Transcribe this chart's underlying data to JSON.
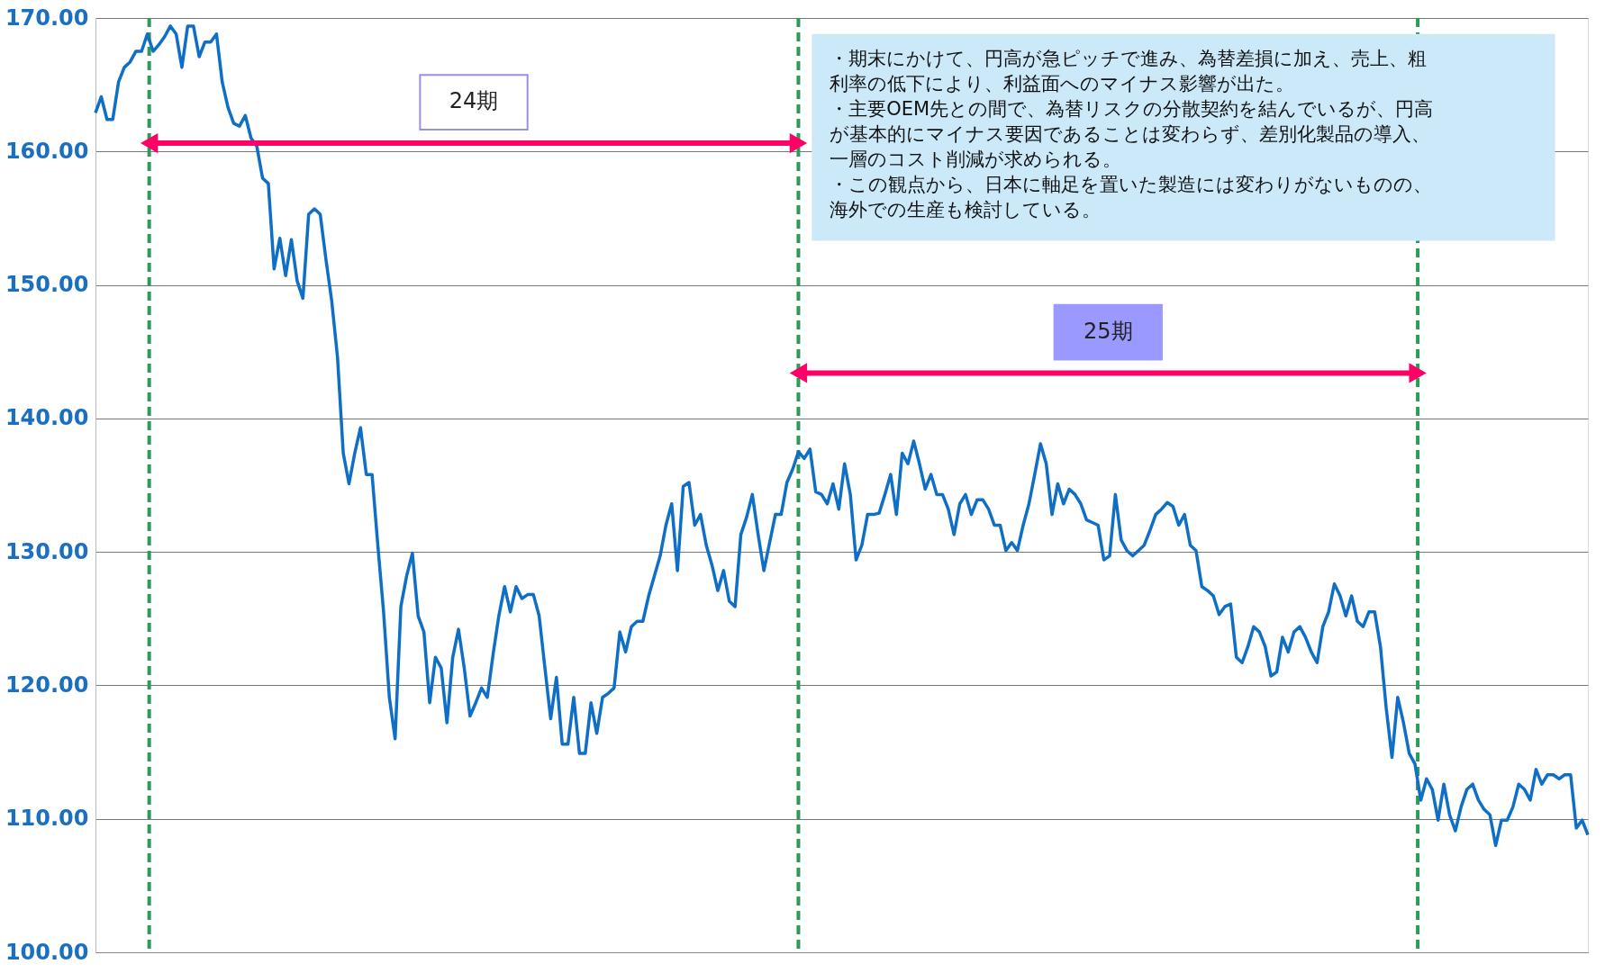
{
  "chart_data": {
    "type": "line",
    "categories": [
      null,
      null,
      null,
      null,
      null,
      null,
      null,
      null,
      null,
      null,
      null,
      null,
      null,
      null,
      null,
      null,
      null,
      null,
      null,
      null,
      null,
      null,
      null,
      null,
      null,
      null,
      null,
      null,
      null,
      null,
      null,
      null,
      null,
      null,
      null,
      null,
      null,
      null,
      null,
      null,
      null,
      null,
      null,
      null,
      null,
      null,
      null,
      null,
      null,
      null,
      null,
      null,
      null,
      null,
      null,
      null,
      null,
      null,
      null,
      null,
      null,
      null,
      null,
      null,
      null,
      null,
      null,
      null,
      null,
      null,
      null,
      null,
      null,
      null,
      null,
      null,
      null,
      null,
      null,
      null,
      null,
      null,
      null,
      null,
      null,
      null,
      null,
      null,
      null,
      null,
      null,
      null,
      null,
      null,
      null,
      null,
      null,
      null,
      null,
      null,
      null,
      null,
      null,
      null,
      null,
      null,
      null,
      null,
      null,
      null,
      null,
      null,
      null,
      null,
      null,
      null,
      null,
      null,
      null,
      null,
      null,
      null,
      null,
      null,
      null,
      null,
      null,
      null,
      null,
      null,
      null,
      null,
      null,
      null,
      null,
      null,
      null,
      null,
      null,
      null,
      null,
      null,
      null,
      null,
      null,
      null,
      null,
      null,
      null,
      null,
      null,
      null,
      null,
      null,
      null,
      null,
      null,
      null,
      null,
      null,
      null,
      null,
      null,
      null,
      null,
      null,
      null,
      null,
      null,
      null,
      null,
      null,
      null,
      null,
      null,
      null,
      null,
      null,
      null,
      null,
      null,
      null,
      null,
      null,
      null,
      null,
      null,
      null,
      null,
      null,
      null,
      null,
      null,
      null,
      null,
      null,
      null,
      null,
      null,
      null,
      null,
      null,
      null,
      null,
      null,
      null,
      null,
      null,
      null,
      null,
      null,
      null,
      null,
      null,
      null,
      null,
      null,
      null,
      null,
      null,
      null,
      null,
      null,
      null,
      null,
      null,
      null,
      null,
      null,
      null,
      null,
      null,
      null,
      null,
      null,
      null,
      null,
      null,
      null,
      null,
      null,
      null,
      null,
      null,
      null,
      null,
      null,
      null,
      null,
      null,
      null,
      null,
      null,
      null,
      null,
      null,
      null,
      null,
      null,
      null
    ],
    "series": [
      {
        "color": "#0f6fc6",
        "values": [
          162.9,
          164.1,
          162.4,
          162.4,
          165.2,
          166.3,
          166.7,
          167.5,
          167.5,
          168.8,
          167.5,
          168.0,
          168.6,
          169.4,
          168.8,
          166.3,
          169.4,
          169.4,
          167.1,
          168.2,
          168.2,
          168.8,
          165.2,
          163.3,
          162.1,
          161.9,
          162.7,
          161.0,
          160.4,
          158.0,
          157.6,
          151.2,
          153.5,
          150.7,
          153.4,
          150.3,
          149.0,
          155.3,
          155.7,
          155.3,
          151.9,
          148.8,
          144.6,
          137.4,
          135.1,
          137.4,
          139.3,
          135.8,
          135.8,
          130.5,
          125.5,
          119.1,
          116.0,
          125.9,
          128.2,
          129.9,
          125.2,
          124.0,
          118.7,
          122.1,
          121.3,
          117.2,
          122.1,
          124.2,
          121.3,
          117.7,
          118.7,
          119.8,
          119.1,
          122.3,
          125.2,
          127.4,
          125.5,
          127.4,
          126.5,
          126.8,
          126.8,
          125.2,
          121.3,
          117.5,
          120.6,
          115.6,
          115.6,
          119.1,
          114.9,
          114.9,
          118.7,
          116.4,
          119.1,
          119.4,
          119.8,
          124.0,
          122.5,
          124.4,
          124.8,
          124.8,
          126.7,
          128.2,
          129.7,
          132.0,
          133.6,
          128.6,
          134.9,
          135.2,
          132.0,
          132.8,
          130.5,
          129.0,
          127.1,
          128.6,
          126.3,
          125.9,
          131.3,
          132.6,
          134.3,
          131.3,
          128.6,
          130.7,
          132.8,
          132.8,
          135.2,
          136.2,
          137.5,
          137.0,
          137.7,
          134.5,
          134.3,
          133.6,
          135.1,
          133.2,
          136.6,
          134.3,
          129.4,
          130.5,
          132.8,
          132.8,
          132.9,
          134.3,
          135.8,
          132.8,
          137.4,
          136.6,
          138.3,
          136.6,
          134.7,
          135.8,
          134.3,
          134.3,
          133.2,
          131.3,
          133.6,
          134.3,
          132.8,
          133.9,
          133.9,
          133.2,
          132.0,
          132.0,
          130.1,
          130.7,
          130.1,
          132.0,
          133.6,
          135.8,
          138.1,
          136.6,
          132.8,
          135.1,
          133.6,
          134.7,
          134.3,
          133.6,
          132.4,
          132.2,
          132.0,
          129.4,
          129.7,
          134.3,
          130.9,
          130.1,
          129.7,
          130.1,
          130.5,
          131.6,
          132.8,
          133.2,
          133.7,
          133.4,
          132.0,
          132.8,
          130.5,
          130.1,
          127.4,
          127.1,
          126.7,
          125.3,
          125.9,
          126.1,
          122.1,
          121.7,
          122.9,
          124.4,
          124.0,
          122.9,
          120.7,
          121.0,
          123.6,
          122.5,
          124.0,
          124.4,
          123.6,
          122.5,
          121.7,
          124.4,
          125.5,
          127.6,
          126.7,
          125.2,
          126.7,
          124.8,
          124.4,
          125.5,
          125.5,
          122.9,
          118.3,
          114.6,
          119.1,
          117.2,
          114.9,
          114.1,
          111.4,
          113.0,
          112.2,
          109.9,
          112.6,
          110.3,
          109.1,
          110.9,
          112.2,
          112.6,
          111.4,
          110.7,
          110.3,
          108.0,
          109.9,
          109.9,
          110.9,
          112.6,
          112.2,
          111.4,
          113.7,
          112.6,
          113.3,
          113.3,
          113.0,
          113.3,
          113.3,
          109.3,
          109.9,
          108.8
        ]
      }
    ],
    "ylim": [
      100,
      170
    ],
    "yticks": [
      {
        "value": 100,
        "label": "100.00"
      },
      {
        "value": 110,
        "label": "110.00"
      },
      {
        "value": 120,
        "label": "120.00"
      },
      {
        "value": 130,
        "label": "130.00"
      },
      {
        "value": 140,
        "label": "140.00"
      },
      {
        "value": 150,
        "label": "150.00"
      },
      {
        "value": 160,
        "label": "160.00"
      },
      {
        "value": 170,
        "label": "170.00"
      }
    ],
    "tick_labels": "y",
    "grid": "y",
    "legend": false,
    "marker": "none",
    "line_style": "solid",
    "annotations": [
      "24期",
      "25期",
      "・期末にかけて、円高が急ピッチで進み、為替差損に加え、売上、粗利率の低下により、利益面へのマイナス影響が出た。",
      "・主要OEM先との間で、為替リスクの分散契約を結んでいるが、円高が基本的にマイナス要因であることは変わらず、差別化製品の導入、一層のコスト削減が求められる。",
      "・この観点から、日本に軸足を置いた製造には変わりがないものの、海外での生産も検討している。"
    ]
  }
}
